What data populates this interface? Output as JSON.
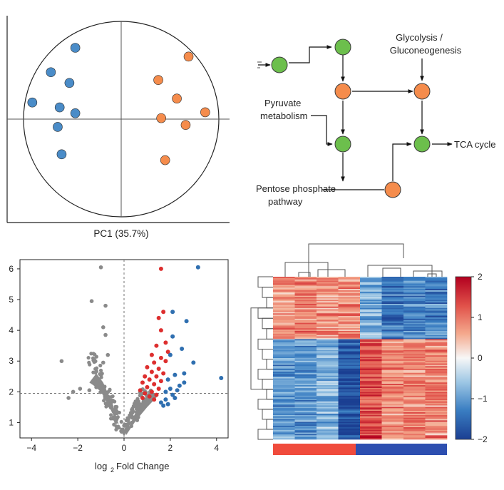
{
  "colors": {
    "blue": "#4a8cc8",
    "orange": "#f58c4c",
    "green": "#6cbf4c",
    "gray": "#8a8a8a",
    "red": "#dd2e2e",
    "volcano_blue": "#2f6fb0",
    "hm_red": "#c8102e",
    "hm_blue": "#1f4e9c",
    "group_red": "#f04b3c",
    "group_blue": "#2d4fb0"
  },
  "chart_data": [
    {
      "type": "scatter",
      "name": "pca",
      "xlabel": "PC1 (35.7%)",
      "ylabel": "",
      "axes": "crosshair",
      "circle": true,
      "series": [
        {
          "color": "blue",
          "points": [
            [
              -0.47,
              0.73
            ],
            [
              -0.72,
              0.48
            ],
            [
              -0.53,
              0.37
            ],
            [
              -0.91,
              0.17
            ],
            [
              -0.63,
              0.12
            ],
            [
              -0.47,
              0.06
            ],
            [
              -0.65,
              -0.08
            ],
            [
              -0.61,
              -0.36
            ]
          ]
        },
        {
          "color": "orange",
          "points": [
            [
              0.69,
              0.64
            ],
            [
              0.38,
              0.4
            ],
            [
              0.57,
              0.21
            ],
            [
              0.86,
              0.07
            ],
            [
              0.41,
              0.01
            ],
            [
              0.66,
              -0.06
            ],
            [
              0.45,
              -0.42
            ]
          ]
        }
      ]
    },
    {
      "type": "scatter",
      "name": "volcano",
      "xlabel": "log2 Fold Change",
      "ylabel": "",
      "xlim": [
        -4.5,
        4.5
      ],
      "ylim": [
        0.5,
        6.3
      ],
      "xticks": [
        -4,
        -2,
        0,
        2,
        4
      ],
      "xtick_labels": [
        "−4",
        "−2",
        "0",
        "2",
        "4"
      ],
      "yticks": [
        1,
        2,
        3,
        4,
        5,
        6
      ],
      "thresholds": {
        "x": 0,
        "y": 1.95
      },
      "highlights": [
        {
          "color": "red",
          "points": [
            [
              1.6,
              6.0
            ],
            [
              1.7,
              4.6
            ],
            [
              1.5,
              4.4
            ],
            [
              1.6,
              4.0
            ],
            [
              1.8,
              3.6
            ],
            [
              1.4,
              3.5
            ],
            [
              1.9,
              3.3
            ],
            [
              1.2,
              3.2
            ],
            [
              1.6,
              3.1
            ],
            [
              1.3,
              2.95
            ],
            [
              1.8,
              3.0
            ],
            [
              1.0,
              2.8
            ],
            [
              1.5,
              2.75
            ],
            [
              1.2,
              2.65
            ],
            [
              1.7,
              2.6
            ],
            [
              0.9,
              2.5
            ],
            [
              1.4,
              2.5
            ],
            [
              1.1,
              2.4
            ],
            [
              1.6,
              2.35
            ],
            [
              0.8,
              2.3
            ],
            [
              1.3,
              2.25
            ],
            [
              1.0,
              2.15
            ],
            [
              1.5,
              2.1
            ],
            [
              0.7,
              2.05
            ],
            [
              1.2,
              2.0
            ],
            [
              0.9,
              1.95
            ],
            [
              1.4,
              1.9
            ],
            [
              1.1,
              1.85
            ],
            [
              0.8,
              1.8
            ],
            [
              1.3,
              1.75
            ]
          ]
        },
        {
          "color": "volcano_blue",
          "points": [
            [
              3.2,
              6.05
            ],
            [
              2.1,
              4.6
            ],
            [
              2.7,
              4.3
            ],
            [
              2.1,
              3.8
            ],
            [
              2.5,
              3.4
            ],
            [
              2.0,
              3.2
            ],
            [
              3.0,
              2.95
            ],
            [
              4.2,
              2.45
            ],
            [
              2.6,
              2.6
            ],
            [
              2.2,
              2.55
            ],
            [
              1.9,
              2.4
            ],
            [
              2.4,
              2.2
            ],
            [
              2.0,
              2.1
            ],
            [
              2.3,
              2.05
            ],
            [
              1.8,
              2.0
            ],
            [
              2.6,
              2.3
            ],
            [
              2.1,
              1.9
            ],
            [
              1.8,
              1.75
            ],
            [
              2.2,
              1.8
            ],
            [
              1.6,
              1.65
            ],
            [
              1.9,
              1.6
            ],
            [
              1.7,
              1.55
            ]
          ]
        }
      ],
      "gray_outliers": [
        [
          -1.0,
          6.05
        ],
        [
          -1.4,
          4.95
        ],
        [
          -0.8,
          4.8
        ],
        [
          -0.9,
          4.1
        ],
        [
          -0.8,
          3.85
        ],
        [
          -2.7,
          3.0
        ],
        [
          -2.4,
          1.8
        ],
        [
          -2.2,
          2.0
        ],
        [
          -1.9,
          2.1
        ],
        [
          -1.2,
          2.15
        ],
        [
          -1.5,
          2.05
        ],
        [
          -0.7,
          3.2
        ],
        [
          -0.9,
          2.95
        ]
      ]
    },
    {
      "type": "heatmap",
      "name": "heatmap",
      "colorbar": {
        "min": -2,
        "max": 2,
        "ticks": [
          2,
          1,
          0,
          -1,
          -2
        ],
        "tick_labels": [
          "2",
          "1",
          "0",
          "−1",
          "−2"
        ]
      },
      "columns": 8,
      "column_means": [
        [
          0.8,
          0.9,
          0.75,
          0.85,
          -0.85,
          -1.35,
          -1.2,
          -1.3
        ],
        [
          -1.0,
          -1.05,
          -0.75,
          -1.8,
          1.35,
          0.85,
          0.8,
          0.85
        ]
      ],
      "block_split": 0.38
    }
  ],
  "flowchart": {
    "labels": {
      "glycolysis": "Glycolysis /",
      "glycolysis2": "Gluconeogenesis",
      "pyruvate": "Pyruvate",
      "pyruvate2": "metabolism",
      "pentose": "Pentose phosphate",
      "pentose2": "pathway",
      "tca": "TCA cycle"
    },
    "nodes": [
      {
        "id": "n1",
        "color": "green"
      },
      {
        "id": "n2",
        "color": "green"
      },
      {
        "id": "n3",
        "color": "orange"
      },
      {
        "id": "n4",
        "color": "orange"
      },
      {
        "id": "n5",
        "color": "green"
      },
      {
        "id": "n6",
        "color": "green"
      },
      {
        "id": "n7",
        "color": "orange"
      }
    ]
  }
}
